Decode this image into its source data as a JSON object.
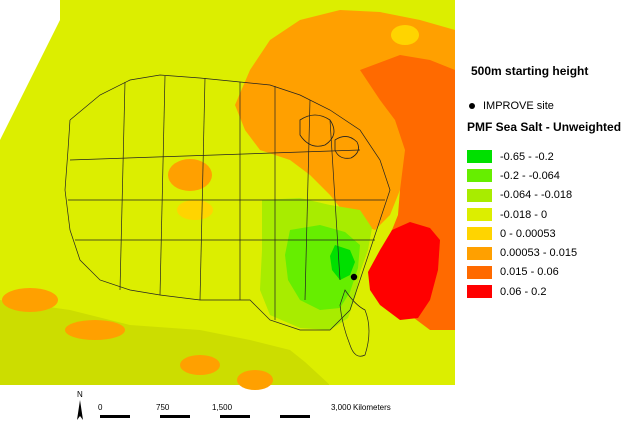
{
  "map": {
    "starting_height": "500m starting height",
    "marker_label": "IMPROVE site",
    "legend_title": "PMF Sea Salt - Unweighted",
    "legend": [
      {
        "label": "-0.65 - -0.2",
        "color": "#00e000"
      },
      {
        "label": "-0.2 - -0.064",
        "color": "#66ee00"
      },
      {
        "label": "-0.064 - -0.018",
        "color": "#a8ec00"
      },
      {
        "label": "-0.018 - 0",
        "color": "#dcee00"
      },
      {
        "label": "0 - 0.00053",
        "color": "#ffd400"
      },
      {
        "label": "0.00053 - 0.015",
        "color": "#ffa000"
      },
      {
        "label": "0.015 - 0.06",
        "color": "#ff6a00"
      },
      {
        "label": "0.06 - 0.2",
        "color": "#ff0000"
      }
    ],
    "scale_bar": {
      "north_label": "N",
      "ticks": [
        "0",
        "750",
        "1,500",
        "3,000"
      ],
      "units": "Kilometers"
    }
  }
}
